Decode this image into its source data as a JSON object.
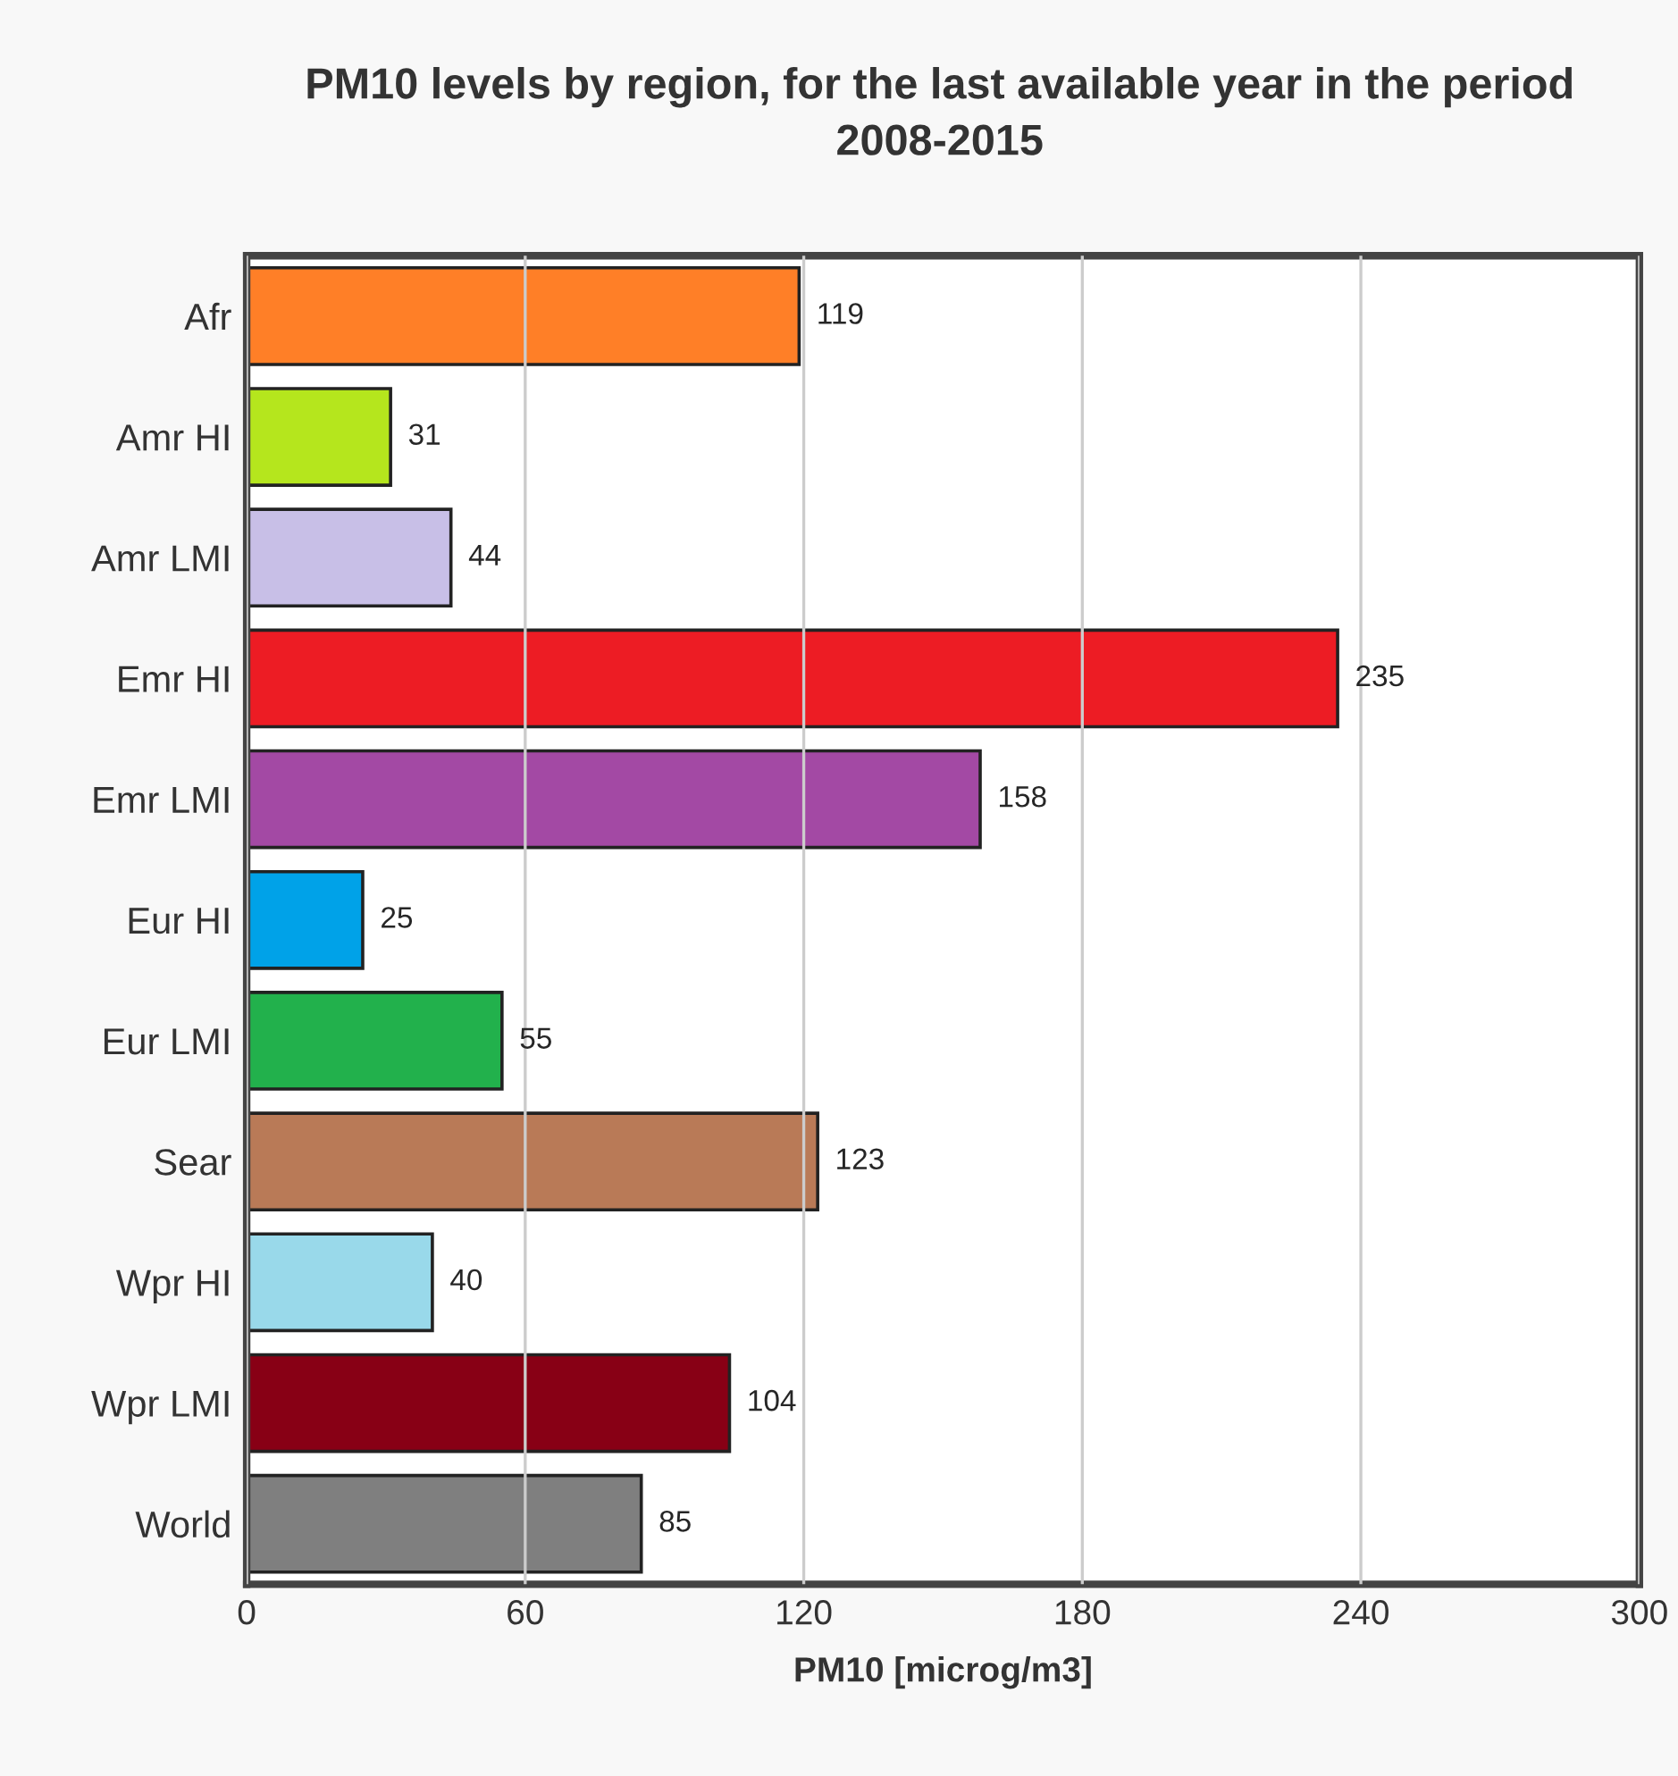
{
  "chart_data": {
    "type": "bar",
    "orientation": "horizontal",
    "title": "PM10 levels by region, for the last available year in the period 2008-2015",
    "xlabel": "PM10 [microg/m3]",
    "categories": [
      "Afr",
      "Amr HI",
      "Amr LMI",
      "Emr HI",
      "Emr LMI",
      "Eur HI",
      "Eur LMI",
      "Sear",
      "Wpr HI",
      "Wpr LMI",
      "World"
    ],
    "values": [
      119,
      31,
      44,
      235,
      158,
      25,
      55,
      123,
      40,
      104,
      85
    ],
    "colors": [
      "#ff7f27",
      "#b5e61d",
      "#c8bfe7",
      "#ed1c24",
      "#a349a4",
      "#00a2e8",
      "#22b14c",
      "#b97a57",
      "#99d9ea",
      "#880015",
      "#7f7f7f"
    ],
    "xlim": [
      0,
      300
    ],
    "xticks": [
      0,
      60,
      120,
      180,
      240,
      300
    ],
    "grid": "x",
    "data_labels": true
  }
}
